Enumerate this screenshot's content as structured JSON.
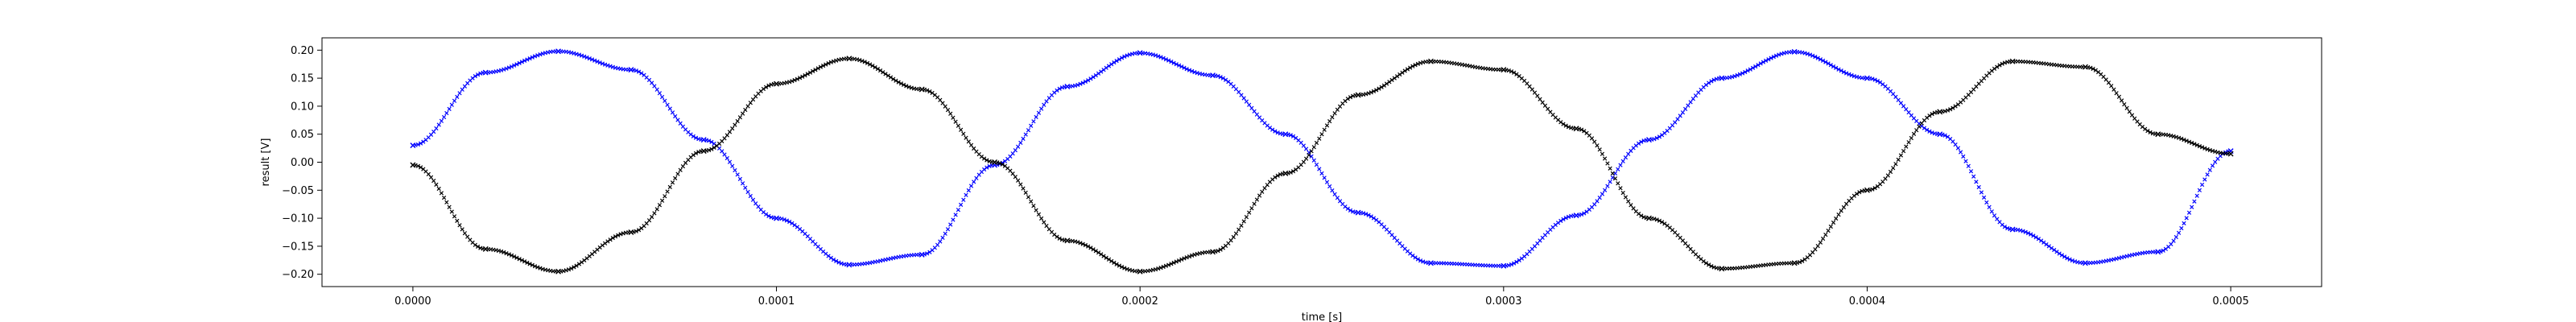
{
  "chart_data": {
    "type": "scatter",
    "title": "",
    "xlabel": "time [s]",
    "ylabel": "result [V]",
    "xlim": [
      -2.5e-05,
      0.000525
    ],
    "ylim": [
      -0.222,
      0.222
    ],
    "grid": false,
    "legend": "none",
    "x_ticks": [
      0.0,
      0.0001,
      0.0002,
      0.0003,
      0.0004,
      0.0005
    ],
    "x_tick_labels": [
      "0.0000",
      "0.0001",
      "0.0002",
      "0.0003",
      "0.0004",
      "0.0005"
    ],
    "y_ticks": [
      -0.2,
      -0.15,
      -0.1,
      -0.05,
      0.0,
      0.05,
      0.1,
      0.15,
      0.2
    ],
    "y_tick_labels": [
      "−0.20",
      "−0.15",
      "−0.10",
      "−0.05",
      "0.00",
      "0.05",
      "0.10",
      "0.15",
      "0.20"
    ],
    "series": [
      {
        "color": "#0000ff",
        "marker": "x",
        "x": [
          0.0,
          2e-05,
          4e-05,
          6e-05,
          8e-05,
          0.0001,
          0.00012,
          0.00014,
          0.00016,
          0.00018,
          0.0002,
          0.00022,
          0.00024,
          0.00026,
          0.00028,
          0.0003,
          0.00032,
          0.00034,
          0.00036,
          0.00038,
          0.0004,
          0.00042,
          0.00044,
          0.00046,
          0.00048,
          0.0005
        ],
        "y": [
          0.03,
          0.16,
          0.198,
          0.165,
          0.04,
          -0.1,
          -0.183,
          -0.165,
          -0.005,
          0.135,
          0.195,
          0.155,
          0.05,
          -0.09,
          -0.18,
          -0.185,
          -0.095,
          0.04,
          0.15,
          0.197,
          0.15,
          0.05,
          -0.12,
          -0.18,
          -0.16,
          0.02
        ]
      },
      {
        "color": "#000000",
        "marker": "x",
        "x": [
          0.0,
          2e-05,
          4e-05,
          6e-05,
          8e-05,
          0.0001,
          0.00012,
          0.00014,
          0.00016,
          0.00018,
          0.0002,
          0.00022,
          0.00024,
          0.00026,
          0.00028,
          0.0003,
          0.00032,
          0.00034,
          0.00036,
          0.00038,
          0.0004,
          0.00042,
          0.00044,
          0.00046,
          0.00048,
          0.0005
        ],
        "y": [
          -0.005,
          -0.155,
          -0.195,
          -0.125,
          0.02,
          0.14,
          0.185,
          0.13,
          0.0,
          -0.14,
          -0.195,
          -0.16,
          -0.02,
          0.12,
          0.18,
          0.165,
          0.06,
          -0.1,
          -0.19,
          -0.18,
          -0.05,
          0.09,
          0.18,
          0.17,
          0.05,
          0.015
        ]
      }
    ]
  }
}
